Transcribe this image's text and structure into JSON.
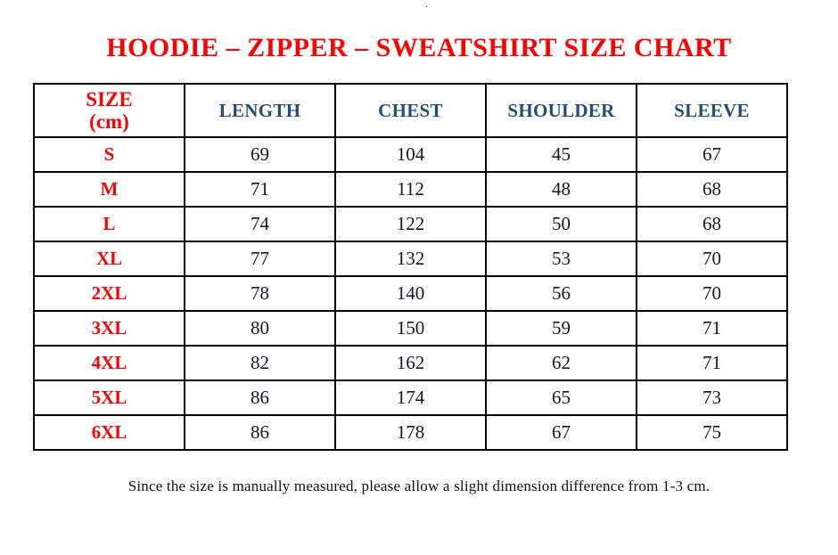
{
  "stray_mark": ".",
  "title": "HOODIE – ZIPPER – SWEATSHIRT SIZE CHART",
  "table": {
    "headers": [
      "SIZE\n(cm)",
      "LENGTH",
      "CHEST",
      "SHOULDER",
      "SLEEVE"
    ],
    "rows": [
      {
        "size": "S",
        "length": "69",
        "chest": "104",
        "shoulder": "45",
        "sleeve": "67"
      },
      {
        "size": "M",
        "length": "71",
        "chest": "112",
        "shoulder": "48",
        "sleeve": "68"
      },
      {
        "size": "L",
        "length": "74",
        "chest": "122",
        "shoulder": "50",
        "sleeve": "68"
      },
      {
        "size": "XL",
        "length": "77",
        "chest": "132",
        "shoulder": "53",
        "sleeve": "70"
      },
      {
        "size": "2XL",
        "length": "78",
        "chest": "140",
        "shoulder": "56",
        "sleeve": "70"
      },
      {
        "size": "3XL",
        "length": "80",
        "chest": "150",
        "shoulder": "59",
        "sleeve": "71"
      },
      {
        "size": "4XL",
        "length": "82",
        "chest": "162",
        "shoulder": "62",
        "sleeve": "71"
      },
      {
        "size": "5XL",
        "length": "86",
        "chest": "174",
        "shoulder": "65",
        "sleeve": "73"
      },
      {
        "size": "6XL",
        "length": "86",
        "chest": "178",
        "shoulder": "67",
        "sleeve": "75"
      }
    ]
  },
  "chart_data": {
    "type": "table",
    "title": "HOODIE – ZIPPER – SWEATSHIRT SIZE CHART",
    "columns": [
      "SIZE (cm)",
      "LENGTH",
      "CHEST",
      "SHOULDER",
      "SLEEVE"
    ],
    "rows": [
      [
        "S",
        69,
        104,
        45,
        67
      ],
      [
        "M",
        71,
        112,
        48,
        68
      ],
      [
        "L",
        74,
        122,
        50,
        68
      ],
      [
        "XL",
        77,
        132,
        53,
        70
      ],
      [
        "2XL",
        78,
        140,
        56,
        70
      ],
      [
        "3XL",
        80,
        150,
        59,
        71
      ],
      [
        "4XL",
        82,
        162,
        62,
        71
      ],
      [
        "5XL",
        86,
        174,
        65,
        73
      ],
      [
        "6XL",
        86,
        178,
        67,
        75
      ]
    ]
  },
  "footnote": "Since the size is manually measured, please allow a slight dimension difference from 1-3 cm.",
  "colors": {
    "title_red": "#FF0000",
    "header_blue": "#1F4E79",
    "value_black": "#161620",
    "border_black": "#000000"
  }
}
